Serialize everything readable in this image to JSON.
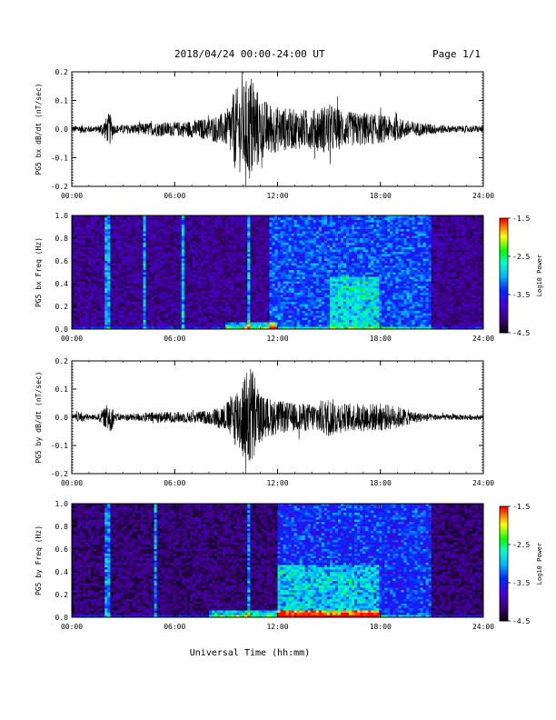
{
  "header": {
    "title": "2018/04/24  00:00-24:00 UT",
    "page": "Page 1/1"
  },
  "footer": {
    "xlabel": "Universal Time (hh:mm)"
  },
  "colorbar": {
    "label": "Log10 Power",
    "ticks": [
      "-1.5",
      "-2.5",
      "-3.5",
      "-4.5"
    ],
    "colors": [
      "#ff0000",
      "#ffff00",
      "#00ff00",
      "#00ffff",
      "#0000ff",
      "#5a00c8",
      "#000000"
    ]
  },
  "chart_data": [
    {
      "type": "line",
      "ylabel": "PG5 bx dB/dt (nT/sec)",
      "xlim": [
        0,
        24
      ],
      "ylim": [
        -0.2,
        0.2
      ],
      "yticks": [
        "0.2",
        "0.1",
        "0.0",
        "-0.1",
        "-0.2"
      ],
      "xticks": [
        "00:00",
        "06:00",
        "12:00",
        "18:00",
        "24:00"
      ],
      "envelope": {
        "hours": [
          0,
          0.5,
          1,
          1.5,
          2,
          2.2,
          2.5,
          3,
          4,
          5,
          6,
          7,
          8,
          9,
          9.5,
          10,
          10.5,
          11,
          12,
          13,
          14,
          15,
          16,
          17,
          18,
          19,
          20,
          21,
          22,
          23,
          24
        ],
        "amplitude": [
          0.01,
          0.015,
          0.012,
          0.01,
          0.04,
          0.06,
          0.015,
          0.015,
          0.02,
          0.025,
          0.025,
          0.03,
          0.04,
          0.06,
          0.14,
          0.16,
          0.2,
          0.11,
          0.08,
          0.07,
          0.07,
          0.09,
          0.06,
          0.06,
          0.05,
          0.04,
          0.025,
          0.02,
          0.012,
          0.012,
          0.012
        ]
      }
    },
    {
      "type": "heatmap",
      "ylabel": "PG5 bx Freq (Hz)",
      "xlim": [
        0,
        24
      ],
      "ylim": [
        0,
        1
      ],
      "yticks": [
        "1.0",
        "0.8",
        "0.6",
        "0.4",
        "0.2",
        "0.0"
      ],
      "xticks": [
        "00:00",
        "06:00",
        "12:00",
        "18:00",
        "24:00"
      ],
      "zlim": [
        -4.5,
        -1.5
      ],
      "features": {
        "background_log_power": -4.3,
        "bright_after_hour": 11.5,
        "vertical_stripes_hours": [
          2.1,
          4.2,
          6.5,
          10.3
        ],
        "low_freq_enhancement_hours": [
          9,
          12
        ],
        "broadband_enhancement_hours": [
          15,
          18
        ]
      }
    },
    {
      "type": "line",
      "ylabel": "PG5 by dB/dt (nT/sec)",
      "xlim": [
        0,
        24
      ],
      "ylim": [
        -0.2,
        0.2
      ],
      "yticks": [
        "0.2",
        "0.1",
        "0.0",
        "-0.1",
        "-0.2"
      ],
      "xticks": [
        "00:00",
        "06:00",
        "12:00",
        "18:00",
        "24:00"
      ],
      "envelope": {
        "hours": [
          0,
          0.5,
          1,
          1.5,
          2,
          2.2,
          2.5,
          3,
          4,
          5,
          6,
          7,
          8,
          9,
          9.5,
          10,
          10.5,
          11,
          12,
          13,
          14,
          15,
          16,
          17,
          18,
          19,
          20,
          21,
          22,
          23,
          24
        ],
        "amplitude": [
          0.008,
          0.02,
          0.01,
          0.01,
          0.04,
          0.07,
          0.015,
          0.012,
          0.015,
          0.02,
          0.02,
          0.02,
          0.025,
          0.05,
          0.1,
          0.15,
          0.2,
          0.08,
          0.06,
          0.05,
          0.05,
          0.07,
          0.05,
          0.05,
          0.05,
          0.04,
          0.02,
          0.012,
          0.01,
          0.01,
          0.008
        ]
      }
    },
    {
      "type": "heatmap",
      "ylabel": "PG5 by Freq (Hz)",
      "xlim": [
        0,
        24
      ],
      "ylim": [
        0,
        1
      ],
      "yticks": [
        "1.0",
        "0.8",
        "0.6",
        "0.4",
        "0.2",
        "0.0"
      ],
      "xticks": [
        "00:00",
        "06:00",
        "12:00",
        "18:00",
        "24:00"
      ],
      "zlim": [
        -4.5,
        -1.5
      ],
      "features": {
        "background_log_power": -4.4,
        "bright_after_hour": 12,
        "vertical_stripes_hours": [
          2.1,
          4.9,
          10.3
        ],
        "low_freq_enhancement_hours": [
          8,
          18
        ],
        "broadband_enhancement_hours": [
          12,
          18
        ]
      }
    }
  ]
}
